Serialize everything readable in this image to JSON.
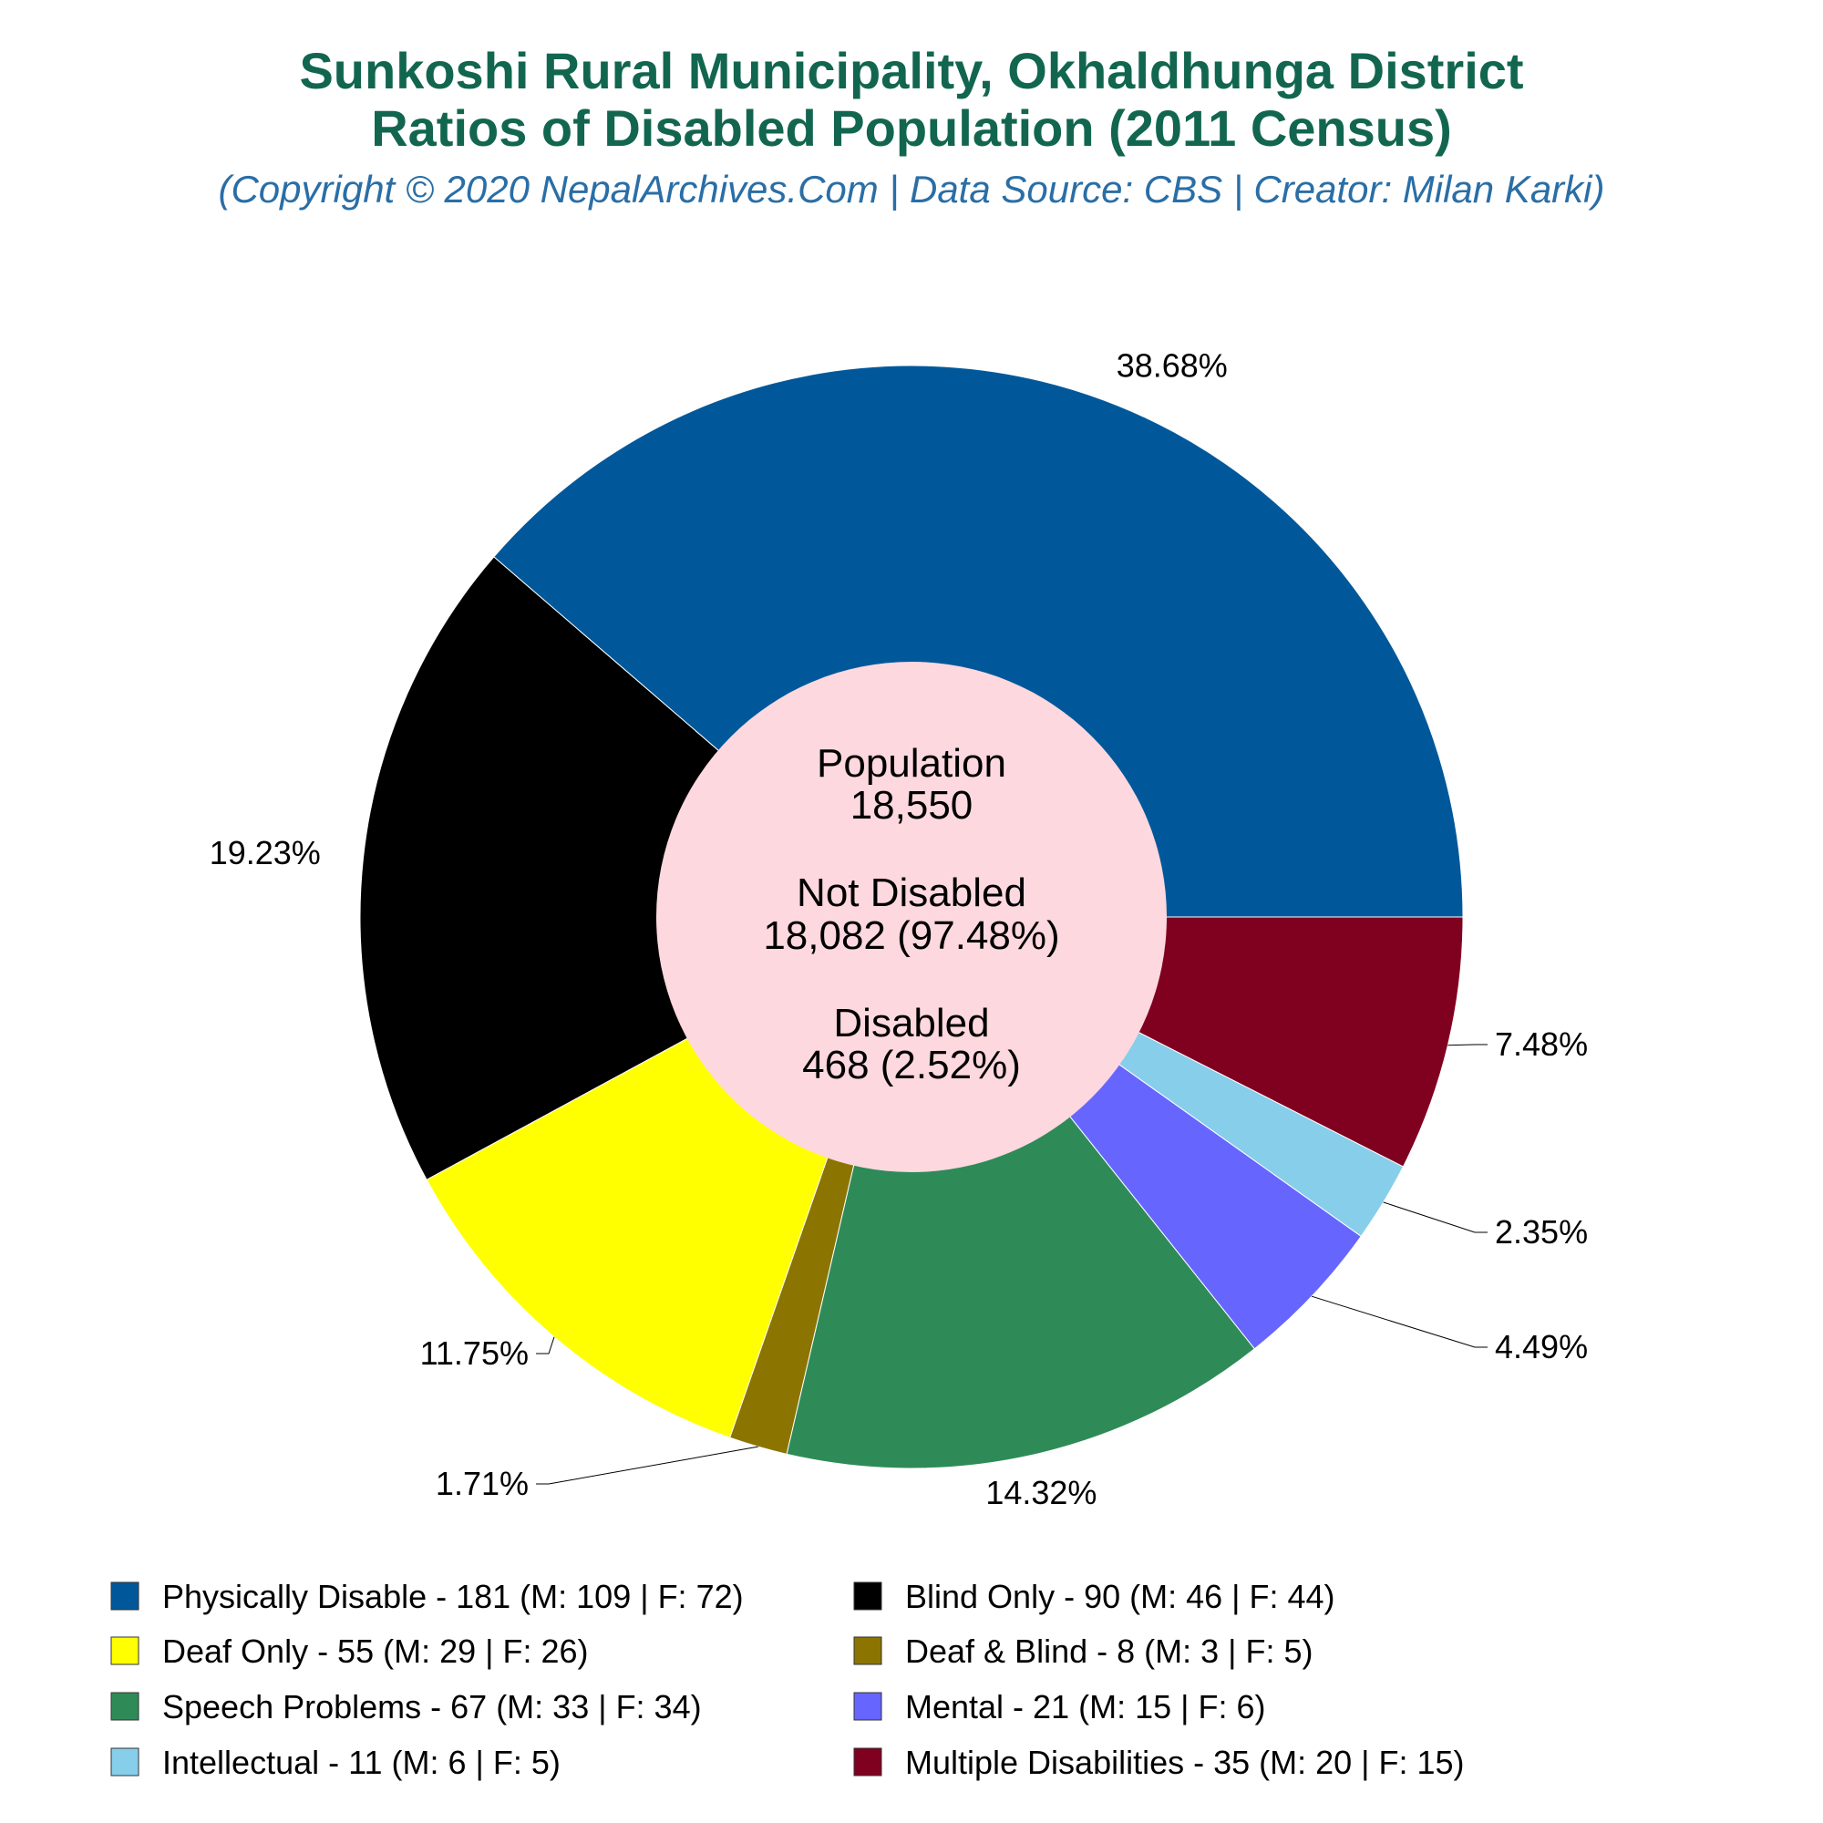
{
  "title_line1": "Sunkoshi Rural Municipality, Okhaldhunga District",
  "title_line2": "Ratios of Disabled Population (2011 Census)",
  "subtitle": "(Copyright © 2020 NepalArchives.Com | Data Source: CBS | Creator: Milan Karki)",
  "center": {
    "population_label": "Population",
    "population_value": "18,550",
    "not_disabled_label": "Not Disabled",
    "not_disabled_value": "18,082 (97.48%)",
    "disabled_label": "Disabled",
    "disabled_value": "468 (2.52%)"
  },
  "chart_data": {
    "type": "pie",
    "title": "Sunkoshi Rural Municipality, Okhaldhunga District Ratios of Disabled Population (2011 Census)",
    "categories": [
      "Physically Disable",
      "Blind Only",
      "Deaf Only",
      "Deaf & Blind",
      "Speech Problems",
      "Mental",
      "Intellectual",
      "Multiple Disabilities"
    ],
    "values": [
      181,
      90,
      55,
      8,
      67,
      21,
      11,
      35
    ],
    "percent_labels": [
      "38.68%",
      "19.23%",
      "11.75%",
      "1.71%",
      "14.32%",
      "4.49%",
      "2.35%",
      "7.48%"
    ],
    "colors": [
      "#00589a",
      "#000000",
      "#ffff00",
      "#8b7500",
      "#2e8b57",
      "#6666ff",
      "#87ceeb",
      "#800020"
    ],
    "center_color": "#fdd8df",
    "legend": [
      "Physically Disable - 181 (M: 109 | F: 72)",
      "Blind Only - 90 (M: 46 | F: 44)",
      "Deaf Only - 55 (M: 29 | F: 26)",
      "Deaf & Blind - 8 (M: 3 | F: 5)",
      "Speech Problems - 67 (M: 33 | F: 34)",
      "Mental - 21 (M: 15 | F: 6)",
      "Intellectual - 11 (M: 6 | F: 5)",
      "Multiple Disabilities - 35 (M: 20 | F: 15)"
    ],
    "legend_placement": "bottom"
  }
}
